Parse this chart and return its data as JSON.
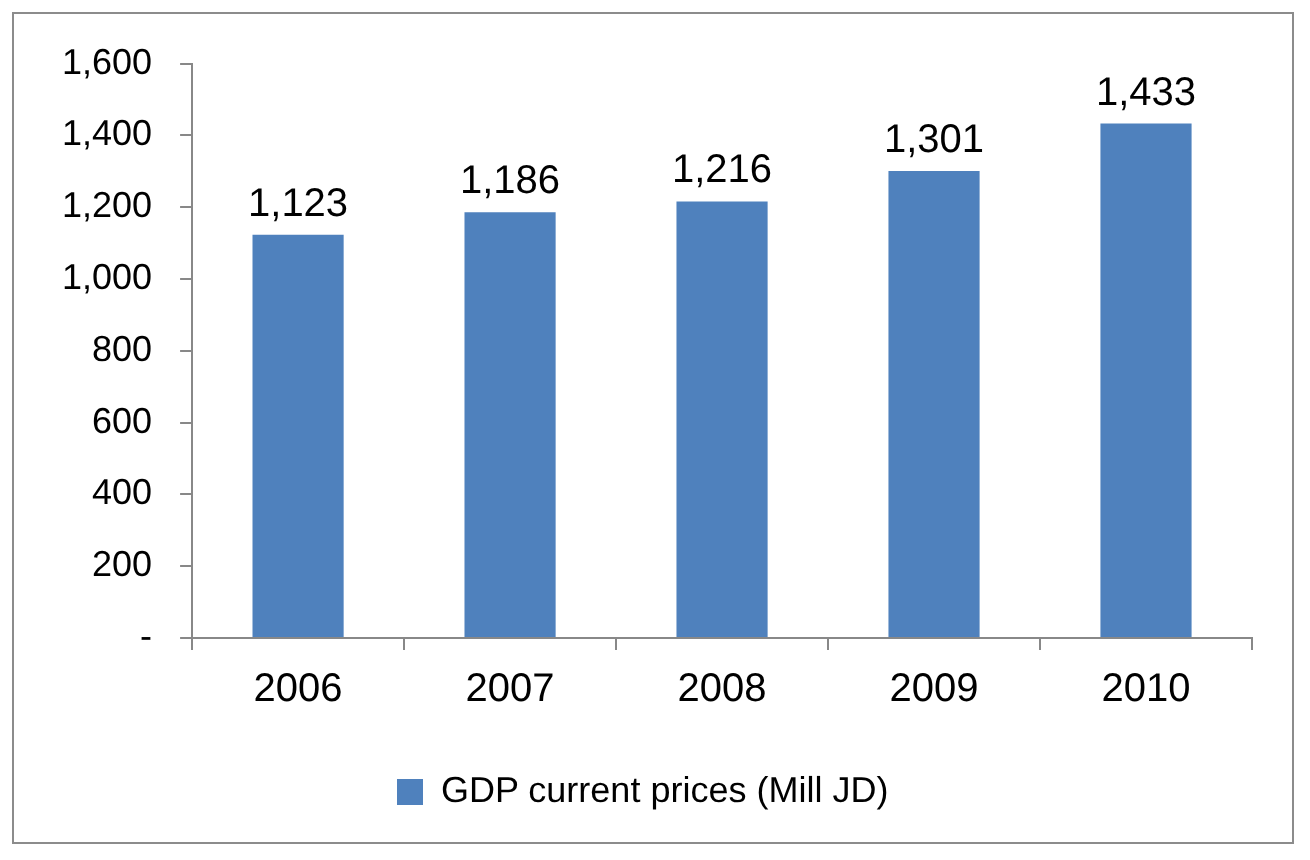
{
  "chart_data": {
    "type": "bar",
    "categories": [
      "2006",
      "2007",
      "2008",
      "2009",
      "2010"
    ],
    "series": [
      {
        "name": "GDP current prices (Mill JD)",
        "color": "#4f81bd",
        "values": [
          1123,
          1186,
          1216,
          1301,
          1433
        ],
        "value_labels": [
          "1,123",
          "1,186",
          "1,216",
          "1,301",
          "1,433"
        ]
      }
    ],
    "ylim": [
      0,
      1600
    ],
    "yticks": [
      {
        "value": 0,
        "label": "-"
      },
      {
        "value": 200,
        "label": "200"
      },
      {
        "value": 400,
        "label": "400"
      },
      {
        "value": 600,
        "label": "600"
      },
      {
        "value": 800,
        "label": "800"
      },
      {
        "value": 1000,
        "label": "1,000"
      },
      {
        "value": 1200,
        "label": "1,200"
      },
      {
        "value": 1400,
        "label": "1,400"
      },
      {
        "value": 1600,
        "label": "1,600"
      }
    ],
    "grid": false,
    "legend": "bottom"
  }
}
